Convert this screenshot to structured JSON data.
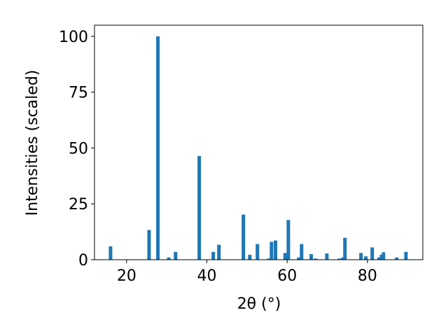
{
  "chart_data": {
    "type": "bar",
    "x_label": "2θ (°)",
    "y_label": "Intensities (scaled)",
    "color": "#1f77b4",
    "x": [
      16.0,
      25.6,
      27.8,
      30.5,
      32.2,
      38.1,
      41.6,
      43.0,
      49.1,
      50.7,
      52.6,
      55.4,
      56.1,
      57.1,
      59.5,
      60.3,
      62.9,
      63.6,
      66.0,
      67.1,
      69.9,
      73.0,
      73.9,
      74.4,
      78.4,
      79.6,
      81.2,
      82.9,
      83.5,
      84.0,
      87.3,
      89.6
    ],
    "values": [
      6,
      13.3,
      100,
      1,
      3.5,
      46.4,
      3.5,
      6.7,
      20.2,
      2.2,
      7,
      0.5,
      8,
      8.6,
      3,
      17.8,
      1,
      7,
      2.5,
      0.5,
      2.8,
      0.5,
      1,
      9.8,
      3,
      1.5,
      5.5,
      1,
      2.2,
      3.3,
      1,
      3.5
    ],
    "xlim": [
      12,
      93.8
    ],
    "ylim": [
      0,
      105
    ],
    "xticks": [
      20,
      40,
      60,
      80
    ],
    "yticks": [
      0,
      25,
      50,
      75,
      100
    ]
  }
}
